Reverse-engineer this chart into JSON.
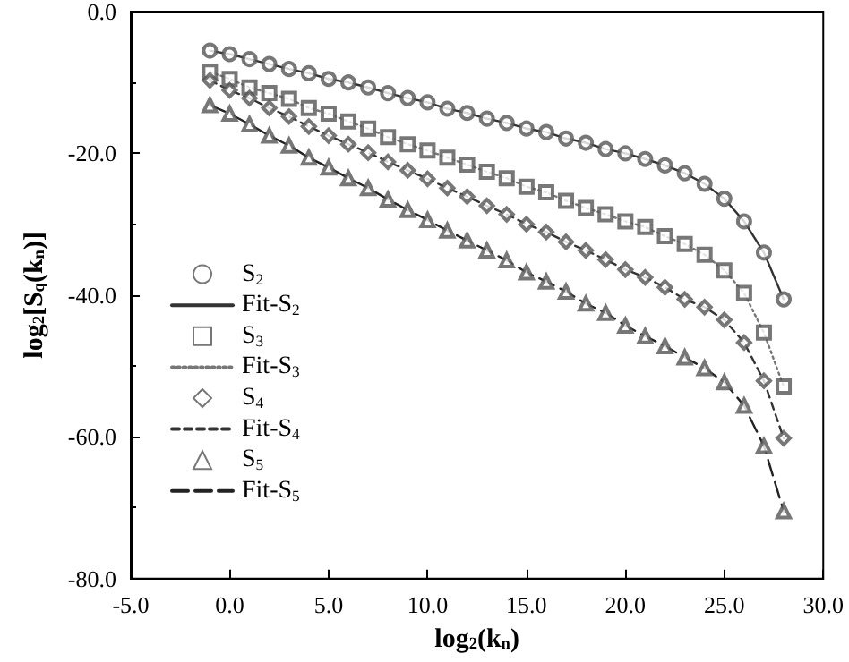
{
  "chart_data": {
    "type": "scatter",
    "xlabel": "log$_{2}$(k$_{n}$)",
    "ylabel": "log$_{2}$[S$_{q}$(k$_{n}$)]",
    "x": [
      -1,
      0,
      1,
      2,
      3,
      4,
      5,
      6,
      7,
      8,
      9,
      10,
      11,
      12,
      13,
      14,
      15,
      16,
      17,
      18,
      19,
      20,
      21,
      22,
      23,
      24,
      25,
      26,
      27,
      28
    ],
    "series": [
      {
        "name": "S$_{2}$",
        "marker": "circle",
        "color": "#555555",
        "values": [
          -5.5,
          -6.0,
          -6.7,
          -7.4,
          -8.1,
          -8.7,
          -9.5,
          -10.0,
          -10.7,
          -11.5,
          -12.2,
          -12.8,
          -13.7,
          -14.3,
          -15.1,
          -15.7,
          -16.5,
          -17.0,
          -17.9,
          -18.5,
          -19.4,
          -20.0,
          -20.8,
          -21.7,
          -22.8,
          -24.3,
          -26.4,
          -29.6,
          -34.0,
          -40.6
        ]
      },
      {
        "name": "Fit-S$_{2}$",
        "type": "line",
        "marker": "none",
        "line_style": "solid",
        "color": "#333333",
        "values": [
          -5.5,
          -6.0,
          -6.7,
          -7.4,
          -8.1,
          -8.7,
          -9.5,
          -10.0,
          -10.7,
          -11.5,
          -12.2,
          -12.8,
          -13.7,
          -14.3,
          -15.1,
          -15.7,
          -16.5,
          -17.0,
          -17.9,
          -18.5,
          -19.4,
          -20.0,
          -20.8,
          -21.7,
          -22.8,
          -24.3,
          -26.4,
          -29.6,
          -34.0,
          -40.6
        ]
      },
      {
        "name": "S$_{3}$",
        "marker": "square",
        "color": "#555555",
        "values": [
          -8.5,
          -9.5,
          -10.7,
          -11.5,
          -12.3,
          -13.6,
          -14.4,
          -15.5,
          -16.5,
          -17.7,
          -18.7,
          -19.6,
          -20.6,
          -21.6,
          -22.6,
          -23.5,
          -24.7,
          -25.5,
          -26.7,
          -27.7,
          -28.6,
          -29.6,
          -30.4,
          -31.7,
          -32.8,
          -34.3,
          -36.5,
          -39.7,
          -45.3,
          -52.9
        ]
      },
      {
        "name": "Fit-S$_{3}$",
        "type": "line",
        "marker": "none",
        "line_style": "dotted",
        "color": "#777777",
        "values": [
          -8.5,
          -9.5,
          -10.7,
          -11.5,
          -12.3,
          -13.6,
          -14.4,
          -15.5,
          -16.5,
          -17.7,
          -18.7,
          -19.6,
          -20.6,
          -21.6,
          -22.6,
          -23.5,
          -24.7,
          -25.5,
          -26.7,
          -27.7,
          -28.6,
          -29.6,
          -30.4,
          -31.7,
          -32.8,
          -34.3,
          -36.5,
          -39.7,
          -45.3,
          -52.9
        ]
      },
      {
        "name": "S$_{4}$",
        "marker": "diamond",
        "color": "#555555",
        "values": [
          -9.7,
          -11.1,
          -12.2,
          -13.6,
          -14.8,
          -16.2,
          -17.5,
          -18.7,
          -19.9,
          -21.2,
          -22.4,
          -23.6,
          -24.9,
          -26.1,
          -27.4,
          -28.6,
          -30.0,
          -31.1,
          -32.5,
          -33.7,
          -35.0,
          -36.4,
          -37.5,
          -38.9,
          -40.6,
          -41.7,
          -43.5,
          -46.7,
          -52.1,
          -60.2
        ]
      },
      {
        "name": "Fit-S$_{4}$",
        "type": "line",
        "marker": "none",
        "line_style": "dashed",
        "color": "#333333",
        "values": [
          -9.7,
          -11.1,
          -12.2,
          -13.6,
          -14.8,
          -16.2,
          -17.5,
          -18.7,
          -19.9,
          -21.2,
          -22.4,
          -23.6,
          -24.9,
          -26.1,
          -27.4,
          -28.6,
          -30.0,
          -31.1,
          -32.5,
          -33.7,
          -35.0,
          -36.4,
          -37.5,
          -38.9,
          -40.6,
          -41.7,
          -43.5,
          -46.7,
          -52.1,
          -60.2
        ]
      },
      {
        "name": "S$_{5}$",
        "marker": "triangle",
        "color": "#555555",
        "values": [
          -13.2,
          -14.4,
          -15.9,
          -17.5,
          -18.9,
          -20.6,
          -22.0,
          -23.5,
          -24.9,
          -26.5,
          -28.0,
          -29.4,
          -30.9,
          -32.3,
          -33.7,
          -35.1,
          -36.8,
          -38.1,
          -39.5,
          -41.2,
          -42.5,
          -44.3,
          -45.8,
          -47.2,
          -48.8,
          -50.3,
          -52.3,
          -55.6,
          -61.3,
          -70.5
        ]
      },
      {
        "name": "Fit-S$_{5}$",
        "type": "line",
        "marker": "none",
        "line_style": "longdash",
        "color": "#222222",
        "values": [
          -13.2,
          -14.4,
          -15.9,
          -17.5,
          -18.9,
          -20.6,
          -22.0,
          -23.5,
          -24.9,
          -26.5,
          -28.0,
          -29.4,
          -30.9,
          -32.3,
          -33.7,
          -35.1,
          -36.8,
          -38.1,
          -39.5,
          -41.2,
          -42.5,
          -44.3,
          -45.8,
          -47.2,
          -48.8,
          -50.3,
          -52.3,
          -55.6,
          -61.3,
          -70.5
        ]
      }
    ],
    "xlim": [
      -5,
      30
    ],
    "xticks": [
      {
        "value": -5,
        "label": "-5.0"
      },
      {
        "value": 0,
        "label": "0.0"
      },
      {
        "value": 5,
        "label": "5.0"
      },
      {
        "value": 10,
        "label": "10.0"
      },
      {
        "value": 15,
        "label": "15.0"
      },
      {
        "value": 20,
        "label": "20.0"
      },
      {
        "value": 25,
        "label": "25.0"
      },
      {
        "value": 30,
        "label": "30.0"
      }
    ],
    "ylim": [
      -80,
      0
    ],
    "yticks": [
      {
        "value": -80,
        "label": "-80.0"
      },
      {
        "value": -60,
        "label": "-60.0"
      },
      {
        "value": -40,
        "label": "-40.0"
      },
      {
        "value": -20,
        "label": "-20.0"
      },
      {
        "value": 0,
        "label": "0.0"
      }
    ],
    "legend": "left",
    "grid": false
  }
}
